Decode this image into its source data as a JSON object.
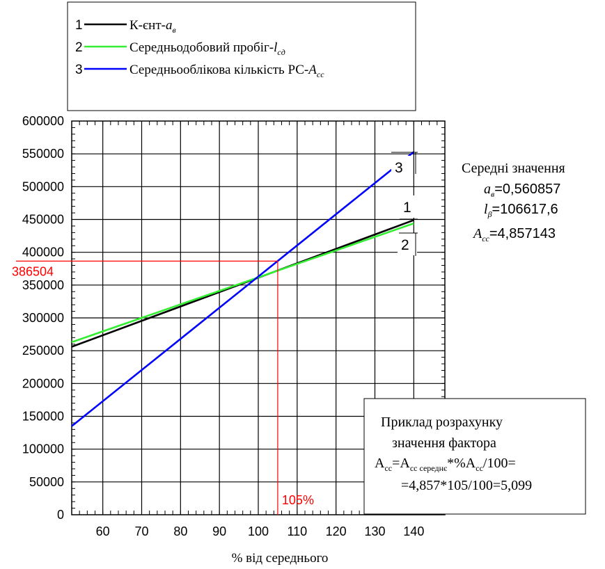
{
  "chart_data": {
    "type": "line",
    "title": "",
    "xlabel": "% від середнього",
    "ylabel": "",
    "xlim": [
      52,
      148
    ],
    "ylim": [
      0,
      600000
    ],
    "x_ticks": [
      60,
      70,
      80,
      90,
      100,
      110,
      120,
      130,
      140
    ],
    "y_ticks": [
      0,
      50000,
      100000,
      150000,
      200000,
      250000,
      300000,
      350000,
      400000,
      450000,
      500000,
      550000,
      600000
    ],
    "grid": true,
    "legend_position": "top, above plot",
    "series": [
      {
        "id": "1",
        "name": "К-єнт-",
        "name_var": "a",
        "name_sub": "в",
        "color": "#000000",
        "x": [
          52,
          140
        ],
        "y": [
          256000,
          449000
        ],
        "end_label": "1"
      },
      {
        "id": "2",
        "name": "Середньодобовий пробіг-",
        "name_var": "l",
        "name_sub": "сд",
        "color": "#33ee33",
        "x": [
          52,
          140
        ],
        "y": [
          263000,
          444000
        ],
        "end_label": "2"
      },
      {
        "id": "3",
        "name": "Середньооблікова кількість РС-",
        "name_var": "A",
        "name_sub": "сс",
        "color": "#0000ff",
        "x": [
          52,
          140
        ],
        "y": [
          135000,
          553000
        ],
        "end_label": "3"
      }
    ],
    "marker": {
      "x": 105,
      "y": 386504,
      "x_label": "105%",
      "y_label": "386504",
      "color": "#ff0000"
    },
    "means": {
      "title": "Середні значення",
      "items": [
        {
          "var": "a",
          "sub": "в",
          "value": "=0,560857"
        },
        {
          "var": "l",
          "sub": "β",
          "value": "=106617,6"
        },
        {
          "var": "A",
          "sub": "сс",
          "value": "=4,857143"
        }
      ]
    },
    "example": {
      "line1": "Приклад розрахунку",
      "line2": "значення фактора",
      "line3_a": "A",
      "line3_a_sub": "сс",
      "line3_eq": "=A",
      "line3_b_sub": "сс середнє",
      "line3_mid": "*%A",
      "line3_c_sub": "сс",
      "line3_end": "/100=",
      "line4": "=4,857*105/100=5,099"
    }
  }
}
